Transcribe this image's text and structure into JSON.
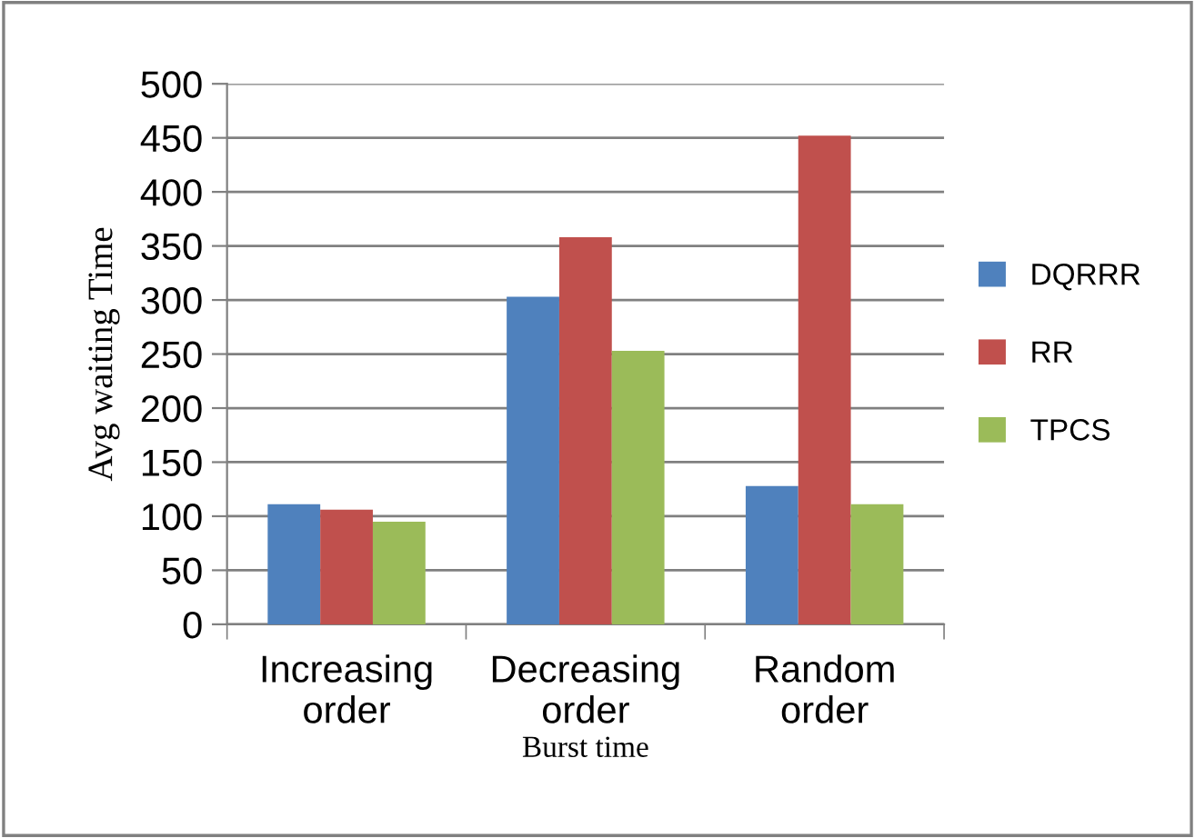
{
  "chart_data": {
    "type": "bar",
    "xlabel": "Burst time",
    "ylabel": "Avg waiting Time",
    "categories": [
      "Increasing\norder",
      "Decreasing\norder",
      "Random\norder"
    ],
    "series": [
      {
        "name": "DQRRR",
        "color": "#4f81bd",
        "values": [
          111,
          303,
          128
        ]
      },
      {
        "name": "RR",
        "color": "#c0504d",
        "values": [
          106,
          358,
          452
        ]
      },
      {
        "name": "TPCS",
        "color": "#9bbb59",
        "values": [
          95,
          253,
          111
        ]
      }
    ],
    "ylim": [
      0,
      500
    ],
    "yticks": [
      0,
      50,
      100,
      150,
      200,
      250,
      300,
      350,
      400,
      450,
      500
    ],
    "grid": "y",
    "legend": "right"
  }
}
